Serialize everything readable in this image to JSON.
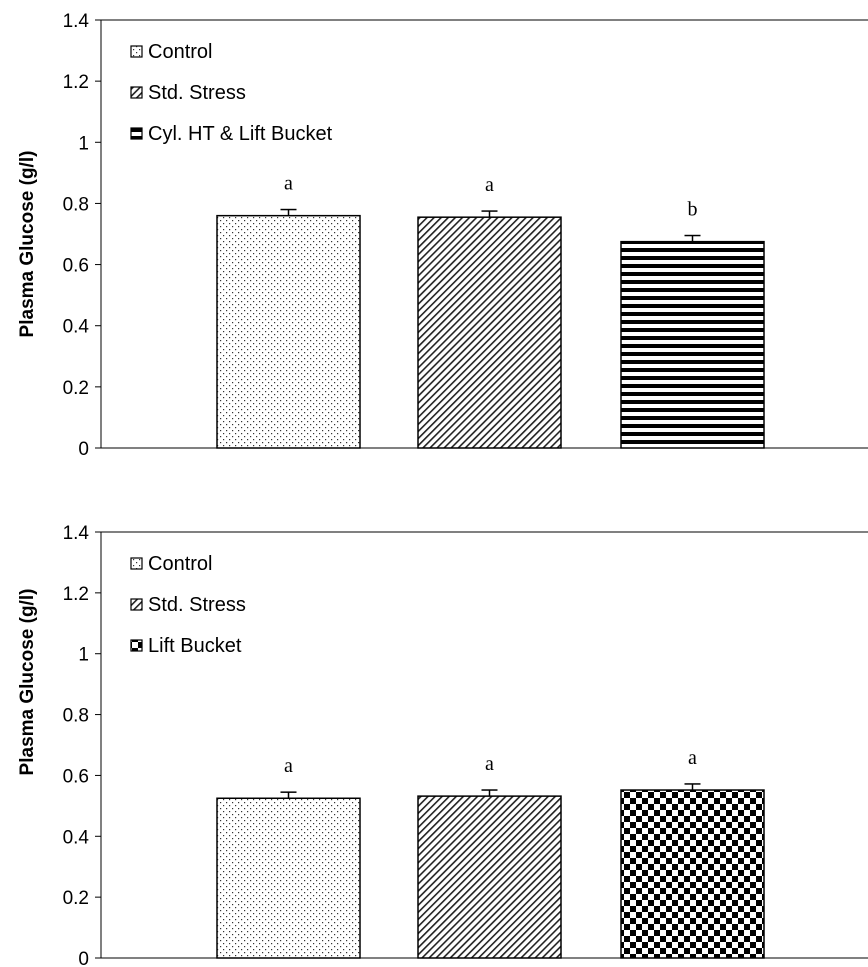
{
  "chart_data": [
    {
      "type": "bar",
      "ylabel": "Plasma Glucose (g/l)",
      "ylim": [
        0,
        1.4
      ],
      "yticks": [
        "0",
        "0.2",
        "0.4",
        "0.6",
        "0.8",
        "1",
        "1.2",
        "1.4"
      ],
      "legend_position": "top-left",
      "series": [
        {
          "name": "Control",
          "value": 0.76,
          "error": 0.02,
          "letter": "a",
          "pattern": "dots"
        },
        {
          "name": "Std. Stress",
          "value": 0.755,
          "error": 0.02,
          "letter": "a",
          "pattern": "diagonal"
        },
        {
          "name": "Cyl. HT & Lift Bucket",
          "value": 0.675,
          "error": 0.02,
          "letter": "b",
          "pattern": "horizontal"
        }
      ]
    },
    {
      "type": "bar",
      "ylabel": "Plasma Glucose (g/l)",
      "ylim": [
        0,
        1.4
      ],
      "yticks": [
        "0",
        "0.2",
        "0.4",
        "0.6",
        "0.8",
        "1",
        "1.2",
        "1.4"
      ],
      "legend_position": "top-left",
      "series": [
        {
          "name": "Control",
          "value": 0.525,
          "error": 0.02,
          "letter": "a",
          "pattern": "dots"
        },
        {
          "name": "Std. Stress",
          "value": 0.532,
          "error": 0.02,
          "letter": "a",
          "pattern": "diagonal"
        },
        {
          "name": "Lift Bucket",
          "value": 0.552,
          "error": 0.02,
          "letter": "a",
          "pattern": "checker"
        }
      ]
    }
  ]
}
